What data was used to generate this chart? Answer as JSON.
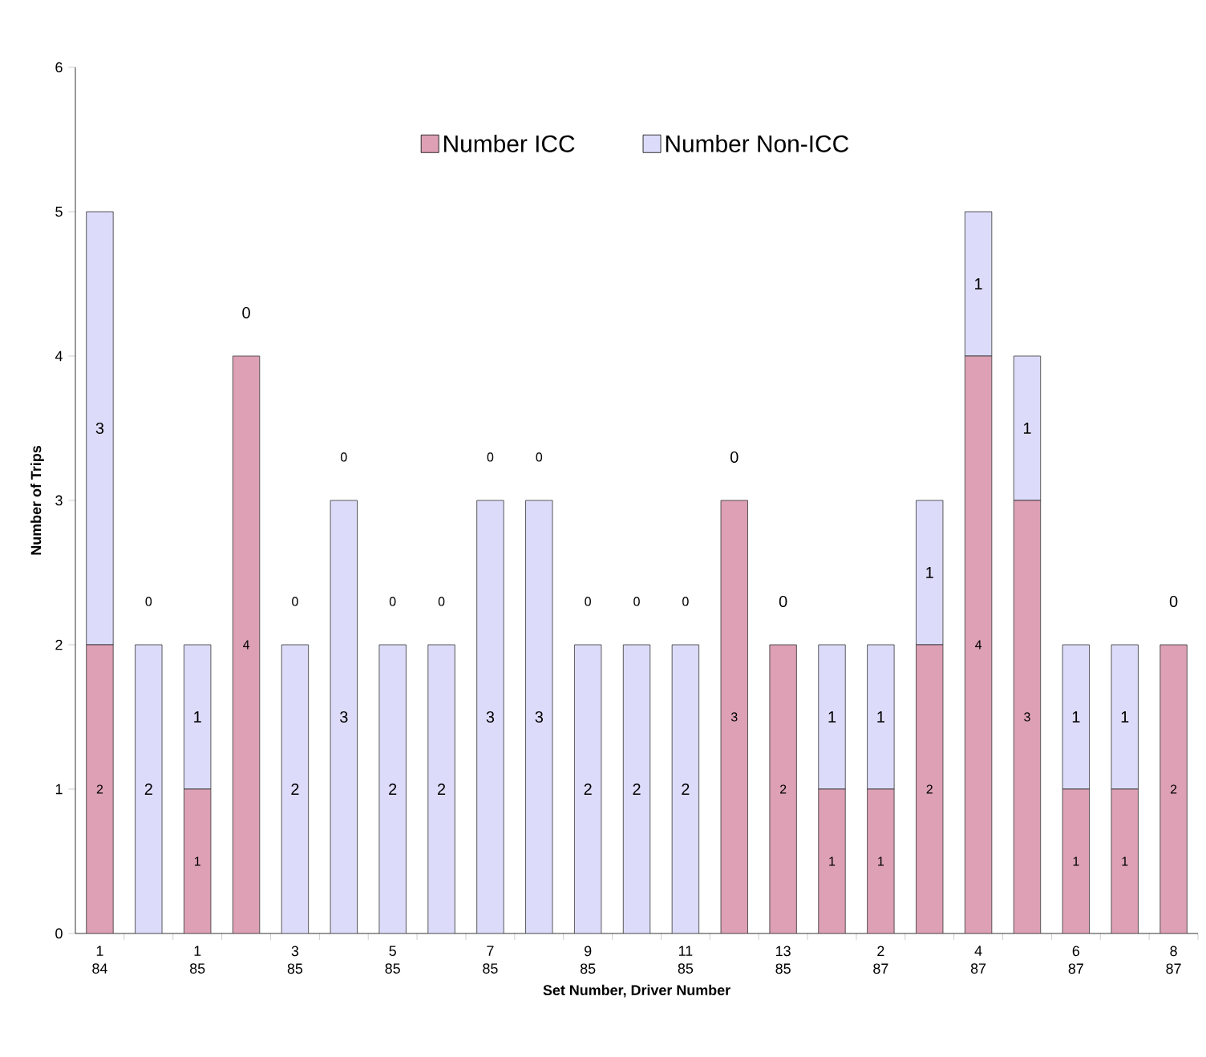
{
  "chart_data": {
    "type": "bar",
    "stacked": true,
    "xlabel": "Set Number, Driver Number",
    "ylabel": "Number of Trips",
    "categories": [
      "1 84",
      null,
      "1 85",
      null,
      "3 85",
      null,
      "5 85",
      null,
      "7 85",
      null,
      "9 85",
      null,
      "11 85",
      null,
      "13 85",
      null,
      "2 87",
      null,
      "4 87",
      null,
      "6 87",
      null,
      "8 87"
    ],
    "series": [
      {
        "name": "Number ICC",
        "color": "#dda0b4",
        "values": [
          2,
          0,
          1,
          4,
          0,
          0,
          0,
          0,
          0,
          0,
          0,
          0,
          0,
          3,
          2,
          1,
          1,
          2,
          4,
          3,
          1,
          1,
          2
        ]
      },
      {
        "name": "Number Non-ICC",
        "color": "#dcdcfa",
        "values": [
          3,
          2,
          1,
          0,
          2,
          3,
          2,
          2,
          3,
          3,
          2,
          2,
          2,
          0,
          0,
          1,
          1,
          1,
          1,
          1,
          1,
          1,
          0
        ]
      }
    ],
    "ylim": [
      0,
      6
    ],
    "yticks": [
      0,
      1,
      2,
      3,
      4,
      5,
      6
    ],
    "legend": "top",
    "data_labels": true
  }
}
